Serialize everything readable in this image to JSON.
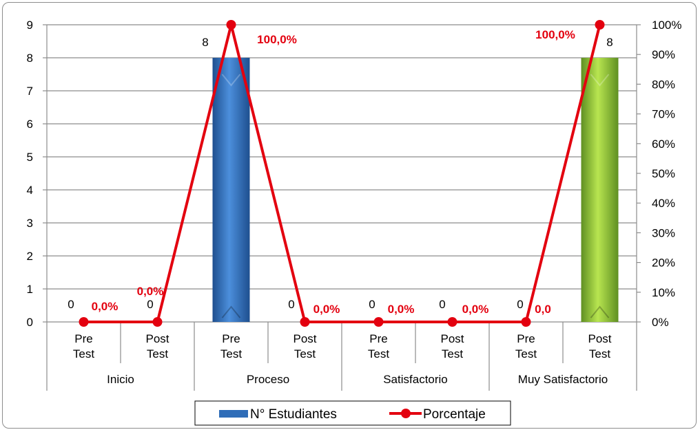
{
  "chart_data": {
    "type": "bar",
    "groups": [
      "Inicio",
      "Proceso",
      "Satisfactorio",
      "Muy Satisfactorio"
    ],
    "subcategories": [
      "Pre\nTest",
      "Post\nTest",
      "Pre\nTest",
      "Post\nTest",
      "Pre\nTest",
      "Post\nTest",
      "Pre\nTest",
      "Post\nTest"
    ],
    "series": [
      {
        "name": "N° Estudiantes",
        "type": "bar",
        "axis": "left",
        "values": [
          0,
          0,
          8,
          0,
          0,
          0,
          0,
          8
        ],
        "labels": [
          "0",
          "0",
          "8",
          "0",
          "0",
          "0",
          "0",
          "8"
        ]
      },
      {
        "name": "Porcentaje",
        "type": "line",
        "axis": "right",
        "values": [
          0,
          0,
          100,
          0,
          0,
          0,
          0,
          100
        ],
        "labels": [
          "0,0%",
          "0,0%",
          "100,0%",
          "0,0%",
          "0,0%",
          "0,0%",
          "0,0",
          "100,0%"
        ]
      }
    ],
    "y_left": {
      "ylim": [
        0,
        9
      ],
      "ticks": [
        "0",
        "1",
        "2",
        "3",
        "4",
        "5",
        "6",
        "7",
        "8",
        "9"
      ]
    },
    "y_right": {
      "ylim": [
        0,
        100
      ],
      "ticks": [
        "0%",
        "10%",
        "20%",
        "30%",
        "40%",
        "50%",
        "60%",
        "70%",
        "80%",
        "90%",
        "100%"
      ]
    },
    "grid": true,
    "legend_position": "bottom",
    "colors": {
      "bar_blue": "#2f6db8",
      "bar_green": "#8cbf3a",
      "line": "#e3000f",
      "grid": "#8c8c8c"
    }
  }
}
